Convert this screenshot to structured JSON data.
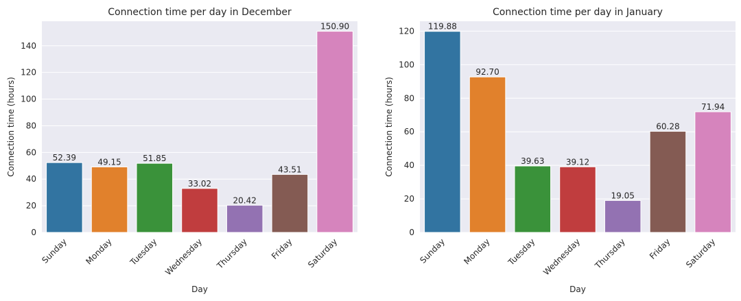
{
  "chart_data": [
    {
      "type": "bar",
      "title": "Connection time per day in December",
      "xlabel": "Day",
      "ylabel": "Connection time (hours)",
      "categories": [
        "Sunday",
        "Monday",
        "Tuesday",
        "Wednesday",
        "Thursday",
        "Friday",
        "Saturday"
      ],
      "values": [
        52.39,
        49.15,
        51.85,
        33.02,
        20.42,
        43.51,
        150.9
      ],
      "data_labels": [
        "52.39",
        "49.15",
        "51.85",
        "33.02",
        "20.42",
        "43.51",
        "150.90"
      ],
      "colors": [
        "#3274a1",
        "#e1812c",
        "#3a923a",
        "#c03d3e",
        "#9372b2",
        "#845b53",
        "#d684bd"
      ],
      "ylim": [
        0,
        158.4
      ],
      "yticks": [
        0,
        20,
        40,
        60,
        80,
        100,
        120,
        140
      ],
      "grid": true,
      "tick_rotation": -45
    },
    {
      "type": "bar",
      "title": "Connection time per day in January",
      "xlabel": "Day",
      "ylabel": "Connection time (hours)",
      "categories": [
        "Sunday",
        "Monday",
        "Tuesday",
        "Wednesday",
        "Thursday",
        "Friday",
        "Saturday"
      ],
      "values": [
        119.88,
        92.7,
        39.63,
        39.12,
        19.05,
        60.28,
        71.94
      ],
      "data_labels": [
        "119.88",
        "92.70",
        "39.63",
        "39.12",
        "19.05",
        "60.28",
        "71.94"
      ],
      "colors": [
        "#3274a1",
        "#e1812c",
        "#3a923a",
        "#c03d3e",
        "#9372b2",
        "#845b53",
        "#d684bd"
      ],
      "ylim": [
        0,
        125.9
      ],
      "yticks": [
        0,
        20,
        40,
        60,
        80,
        100,
        120
      ],
      "grid": true,
      "tick_rotation": -45
    }
  ]
}
